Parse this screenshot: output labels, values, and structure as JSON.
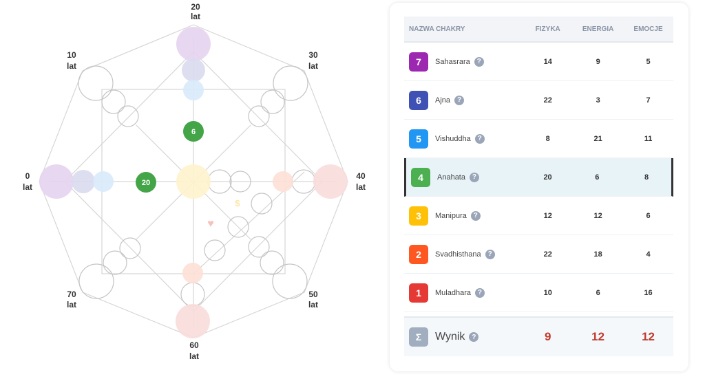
{
  "diagram": {
    "age_labels": [
      {
        "value": "20",
        "unit": "lat"
      },
      {
        "value": "10",
        "unit": "lat"
      },
      {
        "value": "30",
        "unit": "lat"
      },
      {
        "value": "0",
        "unit": "lat"
      },
      {
        "value": "40",
        "unit": "lat"
      },
      {
        "value": "70",
        "unit": "lat"
      },
      {
        "value": "50",
        "unit": "lat"
      },
      {
        "value": "60",
        "unit": "lat"
      }
    ],
    "markers": {
      "top_value": "6",
      "left_value": "20"
    },
    "icons": [
      "dollar-icon",
      "heart-icon"
    ]
  },
  "table": {
    "headers": {
      "name": "NAZWA CHAKRY",
      "physics": "FIZYKA",
      "energy": "ENERGIA",
      "emotions": "EMOCJE"
    },
    "rows": [
      {
        "num": "7",
        "name": "Sahasrara",
        "physics": "14",
        "energy": "9",
        "emotions": "5",
        "color": "#9c27b0"
      },
      {
        "num": "6",
        "name": "Ajna",
        "physics": "22",
        "energy": "3",
        "emotions": "7",
        "color": "#3f51b5"
      },
      {
        "num": "5",
        "name": "Vishuddha",
        "physics": "8",
        "energy": "21",
        "emotions": "11",
        "color": "#2196f3"
      },
      {
        "num": "4",
        "name": "Anahata",
        "physics": "20",
        "energy": "6",
        "emotions": "8",
        "color": "#4caf50",
        "active": true
      },
      {
        "num": "3",
        "name": "Manipura",
        "physics": "12",
        "energy": "12",
        "emotions": "6",
        "color": "#ffc107"
      },
      {
        "num": "2",
        "name": "Svadhisthana",
        "physics": "22",
        "energy": "18",
        "emotions": "4",
        "color": "#ff5722"
      },
      {
        "num": "1",
        "name": "Muladhara",
        "physics": "10",
        "energy": "6",
        "emotions": "16",
        "color": "#e53935"
      }
    ],
    "summary": {
      "symbol": "Σ",
      "name": "Wynik",
      "physics": "9",
      "energy": "12",
      "emotions": "12",
      "color": "#a0aec0"
    },
    "help_symbol": "?"
  }
}
